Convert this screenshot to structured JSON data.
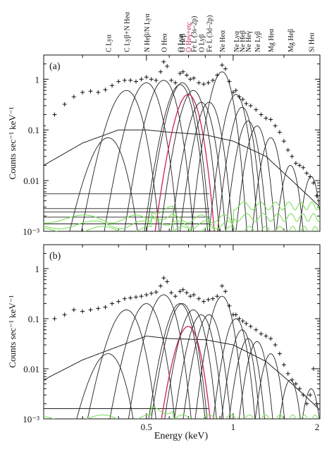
{
  "chart_data": [
    {
      "type": "line",
      "panel_label": "(a)",
      "xscale": "log",
      "yscale": "log",
      "xlim": [
        0.22,
        2.0
      ],
      "ylim": [
        0.001,
        3.0
      ],
      "y_ticks": [
        "1",
        "0.1",
        "0.01",
        "10⁻³"
      ],
      "x_ticks": [],
      "line_names": [
        "C Lyα",
        "C Lyβ+N Heα",
        "N Heβ/N Lyα",
        "O Heα",
        "O Lyα",
        "O Heβ",
        "O Heγ+etc",
        "Fe L (3s–2p)",
        "O Lyβ",
        "Fe L (3d–2p)",
        "Ne Heα",
        "Ne Lyα",
        "Ne Heβ",
        "Ne Heγ",
        "Ne Lyβ",
        "Mg Heα",
        "Mg Heβ",
        "Si Heα"
      ],
      "line_energies": [
        0.368,
        0.426,
        0.5,
        0.574,
        0.654,
        0.666,
        0.698,
        0.727,
        0.775,
        0.825,
        0.915,
        1.022,
        1.074,
        1.127,
        1.21,
        1.35,
        1.58,
        1.865
      ],
      "line_peaks": [
        0.07,
        0.6,
        0.85,
        0.95,
        0.78,
        0.85,
        0.5,
        0.6,
        0.35,
        0.35,
        1.4,
        0.5,
        0.28,
        0.15,
        0.12,
        0.07,
        0.02,
        0.012
      ],
      "highlight_line": "O Heγ+etc",
      "continuum": [
        {
          "x": 0.22,
          "y": 0.02
        },
        {
          "x": 0.3,
          "y": 0.055
        },
        {
          "x": 0.4,
          "y": 0.1
        },
        {
          "x": 0.5,
          "y": 0.1
        },
        {
          "x": 0.6,
          "y": 0.09
        },
        {
          "x": 0.8,
          "y": 0.08
        },
        {
          "x": 1.0,
          "y": 0.06
        },
        {
          "x": 1.3,
          "y": 0.03
        },
        {
          "x": 1.6,
          "y": 0.01
        },
        {
          "x": 1.9,
          "y": 0.004
        },
        {
          "x": 2.0,
          "y": 0.003
        }
      ],
      "background_levels": [
        0.0055,
        0.0028,
        0.0024,
        0.0019,
        0.0014
      ],
      "data": [
        {
          "x": 0.22,
          "y": 0.12
        },
        {
          "x": 0.24,
          "y": 0.2
        },
        {
          "x": 0.26,
          "y": 0.32
        },
        {
          "x": 0.28,
          "y": 0.45
        },
        {
          "x": 0.3,
          "y": 0.55
        },
        {
          "x": 0.32,
          "y": 0.58
        },
        {
          "x": 0.34,
          "y": 0.55
        },
        {
          "x": 0.36,
          "y": 0.62
        },
        {
          "x": 0.38,
          "y": 0.75
        },
        {
          "x": 0.4,
          "y": 0.9
        },
        {
          "x": 0.42,
          "y": 0.95
        },
        {
          "x": 0.44,
          "y": 0.95
        },
        {
          "x": 0.46,
          "y": 0.9
        },
        {
          "x": 0.48,
          "y": 1.0
        },
        {
          "x": 0.5,
          "y": 1.1
        },
        {
          "x": 0.52,
          "y": 1.0
        },
        {
          "x": 0.54,
          "y": 0.95
        },
        {
          "x": 0.56,
          "y": 1.4
        },
        {
          "x": 0.574,
          "y": 2.2
        },
        {
          "x": 0.59,
          "y": 1.8
        },
        {
          "x": 0.61,
          "y": 0.95
        },
        {
          "x": 0.63,
          "y": 0.85
        },
        {
          "x": 0.654,
          "y": 1.3
        },
        {
          "x": 0.67,
          "y": 1.4
        },
        {
          "x": 0.69,
          "y": 1.2
        },
        {
          "x": 0.71,
          "y": 1.0
        },
        {
          "x": 0.73,
          "y": 1.05
        },
        {
          "x": 0.76,
          "y": 0.85
        },
        {
          "x": 0.79,
          "y": 0.8
        },
        {
          "x": 0.82,
          "y": 0.85
        },
        {
          "x": 0.85,
          "y": 0.95
        },
        {
          "x": 0.88,
          "y": 1.2
        },
        {
          "x": 0.915,
          "y": 1.9
        },
        {
          "x": 0.94,
          "y": 1.6
        },
        {
          "x": 0.97,
          "y": 0.9
        },
        {
          "x": 1.0,
          "y": 0.55
        },
        {
          "x": 1.022,
          "y": 0.6
        },
        {
          "x": 1.05,
          "y": 0.45
        },
        {
          "x": 1.08,
          "y": 0.4
        },
        {
          "x": 1.11,
          "y": 0.33
        },
        {
          "x": 1.15,
          "y": 0.3
        },
        {
          "x": 1.2,
          "y": 0.25
        },
        {
          "x": 1.25,
          "y": 0.2
        },
        {
          "x": 1.3,
          "y": 0.17
        },
        {
          "x": 1.35,
          "y": 0.16
        },
        {
          "x": 1.4,
          "y": 0.12
        },
        {
          "x": 1.45,
          "y": 0.09
        },
        {
          "x": 1.5,
          "y": 0.06
        },
        {
          "x": 1.55,
          "y": 0.04
        },
        {
          "x": 1.6,
          "y": 0.03
        },
        {
          "x": 1.65,
          "y": 0.022
        },
        {
          "x": 1.7,
          "y": 0.02
        },
        {
          "x": 1.75,
          "y": 0.018
        },
        {
          "x": 1.8,
          "y": 0.014
        },
        {
          "x": 1.85,
          "y": 0.012
        },
        {
          "x": 1.9,
          "y": 0.009
        },
        {
          "x": 1.95,
          "y": 0.005
        }
      ]
    },
    {
      "type": "line",
      "panel_label": "(b)",
      "xscale": "log",
      "yscale": "log",
      "xlim": [
        0.22,
        2.0
      ],
      "ylim": [
        0.001,
        3.0
      ],
      "y_ticks": [
        "1",
        "0.1",
        "0.01",
        "10⁻³"
      ],
      "x_ticks": [
        "0.5",
        "1",
        "2"
      ],
      "xlabel": "Energy (keV)",
      "ylabel": "Counts sec⁻¹ keV⁻¹",
      "line_energies": [
        0.368,
        0.426,
        0.5,
        0.574,
        0.654,
        0.666,
        0.698,
        0.727,
        0.775,
        0.825,
        0.915,
        1.022,
        1.074,
        1.127,
        1.21,
        1.35,
        1.58,
        1.865
      ],
      "line_peaks": [
        0.02,
        0.15,
        0.2,
        0.3,
        0.2,
        0.2,
        0.07,
        0.15,
        0.12,
        0.12,
        0.28,
        0.1,
        0.06,
        0.04,
        0.035,
        0.02,
        0.006,
        0.004
      ],
      "highlight_line": "O Heγ+etc",
      "continuum": [
        {
          "x": 0.22,
          "y": 0.006
        },
        {
          "x": 0.3,
          "y": 0.015
        },
        {
          "x": 0.4,
          "y": 0.028
        },
        {
          "x": 0.5,
          "y": 0.045
        },
        {
          "x": 0.6,
          "y": 0.04
        },
        {
          "x": 0.8,
          "y": 0.038
        },
        {
          "x": 1.0,
          "y": 0.03
        },
        {
          "x": 1.3,
          "y": 0.014
        },
        {
          "x": 1.6,
          "y": 0.005
        },
        {
          "x": 1.9,
          "y": 0.002
        },
        {
          "x": 2.0,
          "y": 0.0015
        }
      ],
      "background_levels": [
        0.0016
      ],
      "data": [
        {
          "x": 0.22,
          "y": 0.06
        },
        {
          "x": 0.24,
          "y": 0.1
        },
        {
          "x": 0.26,
          "y": 0.12
        },
        {
          "x": 0.28,
          "y": 0.15
        },
        {
          "x": 0.3,
          "y": 0.14
        },
        {
          "x": 0.32,
          "y": 0.15
        },
        {
          "x": 0.34,
          "y": 0.16
        },
        {
          "x": 0.36,
          "y": 0.17
        },
        {
          "x": 0.38,
          "y": 0.2
        },
        {
          "x": 0.4,
          "y": 0.22
        },
        {
          "x": 0.42,
          "y": 0.25
        },
        {
          "x": 0.44,
          "y": 0.26
        },
        {
          "x": 0.46,
          "y": 0.27
        },
        {
          "x": 0.48,
          "y": 0.28
        },
        {
          "x": 0.5,
          "y": 0.3
        },
        {
          "x": 0.52,
          "y": 0.32
        },
        {
          "x": 0.54,
          "y": 0.34
        },
        {
          "x": 0.56,
          "y": 0.45
        },
        {
          "x": 0.574,
          "y": 0.65
        },
        {
          "x": 0.59,
          "y": 0.55
        },
        {
          "x": 0.61,
          "y": 0.33
        },
        {
          "x": 0.63,
          "y": 0.28
        },
        {
          "x": 0.654,
          "y": 0.35
        },
        {
          "x": 0.67,
          "y": 0.38
        },
        {
          "x": 0.69,
          "y": 0.33
        },
        {
          "x": 0.71,
          "y": 0.28
        },
        {
          "x": 0.73,
          "y": 0.3
        },
        {
          "x": 0.76,
          "y": 0.25
        },
        {
          "x": 0.79,
          "y": 0.22
        },
        {
          "x": 0.82,
          "y": 0.24
        },
        {
          "x": 0.85,
          "y": 0.25
        },
        {
          "x": 0.88,
          "y": 0.28
        },
        {
          "x": 0.915,
          "y": 0.45
        },
        {
          "x": 0.94,
          "y": 0.35
        },
        {
          "x": 0.97,
          "y": 0.18
        },
        {
          "x": 1.0,
          "y": 0.12
        },
        {
          "x": 1.022,
          "y": 0.12
        },
        {
          "x": 1.05,
          "y": 0.1
        },
        {
          "x": 1.08,
          "y": 0.09
        },
        {
          "x": 1.11,
          "y": 0.08
        },
        {
          "x": 1.15,
          "y": 0.07
        },
        {
          "x": 1.2,
          "y": 0.06
        },
        {
          "x": 1.25,
          "y": 0.05
        },
        {
          "x": 1.3,
          "y": 0.045
        },
        {
          "x": 1.35,
          "y": 0.04
        },
        {
          "x": 1.4,
          "y": 0.03
        },
        {
          "x": 1.45,
          "y": 0.02
        },
        {
          "x": 1.5,
          "y": 0.012
        },
        {
          "x": 1.55,
          "y": 0.008
        },
        {
          "x": 1.6,
          "y": 0.006
        },
        {
          "x": 1.65,
          "y": 0.005
        },
        {
          "x": 1.7,
          "y": 0.004
        },
        {
          "x": 1.75,
          "y": 0.003
        },
        {
          "x": 1.8,
          "y": 0.002
        },
        {
          "x": 1.85,
          "y": 0.003
        },
        {
          "x": 1.9,
          "y": 0.01
        },
        {
          "x": 1.95,
          "y": 0.002
        }
      ]
    }
  ],
  "colors": {
    "data": "#111111",
    "model": "#222222",
    "highlight": "#cc2060",
    "residual": "#7de05a"
  }
}
